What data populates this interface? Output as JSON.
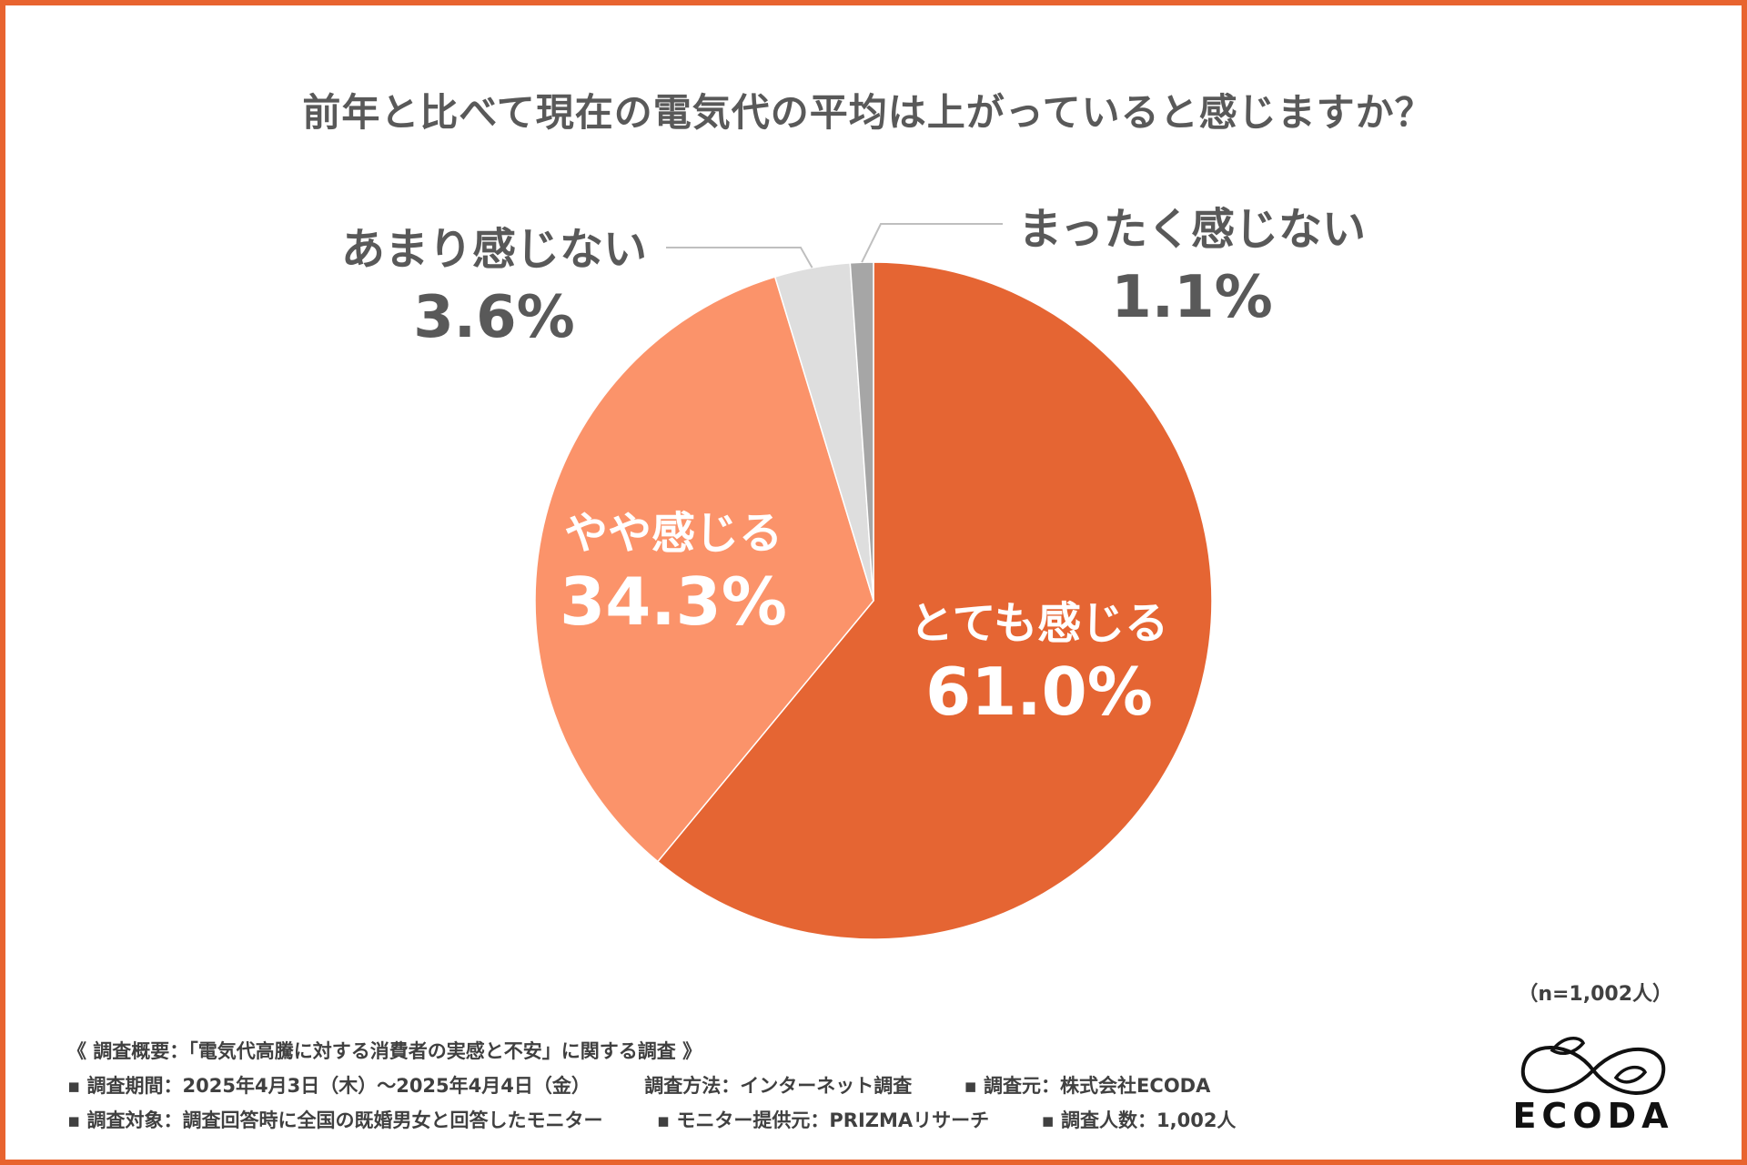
{
  "title": "前年と比べて現在の電気代の平均は上がっていると感じますか？",
  "chart_data": {
    "type": "pie",
    "title": "前年と比べて現在の電気代の平均は上がっていると感じますか？",
    "slices": [
      {
        "label": "とても感じる",
        "value": 61.0,
        "pct_text": "61.0%",
        "color": "#e56533"
      },
      {
        "label": "やや感じる",
        "value": 34.3,
        "pct_text": "34.3%",
        "color": "#fb936a"
      },
      {
        "label": "あまり感じない",
        "value": 3.6,
        "pct_text": "3.6%",
        "color": "#dedede"
      },
      {
        "label": "まったく感じない",
        "value": 1.1,
        "pct_text": "1.1%",
        "color": "#a6a6a6"
      }
    ],
    "start_angle": "12 o'clock",
    "direction": "clockwise",
    "sample_size": "（n=1,002人）"
  },
  "sample_size": "（n=1,002人）",
  "footer": {
    "survey_title": "《 調査概要：「電気代高騰に対する消費者の実感と不安」に関する調査 》",
    "period": "▪ 調査期間：2025年4月3日（木）～2025年4月4日（金）",
    "method": "調査方法：インターネット調査",
    "source": "▪ 調査元：株式会社ECODA",
    "target": "▪ 調査対象：調査回答時に全国の既婚男女と回答したモニター",
    "provider": "▪ モニター提供元：PRIZMAリサーチ",
    "respondents": "▪ 調査人数：1,002人"
  },
  "logo": {
    "text": "ECODA",
    "icon": "ecoda-leaf-infinity-icon"
  },
  "colors": {
    "border": "#e8642f",
    "text": "#595959"
  }
}
